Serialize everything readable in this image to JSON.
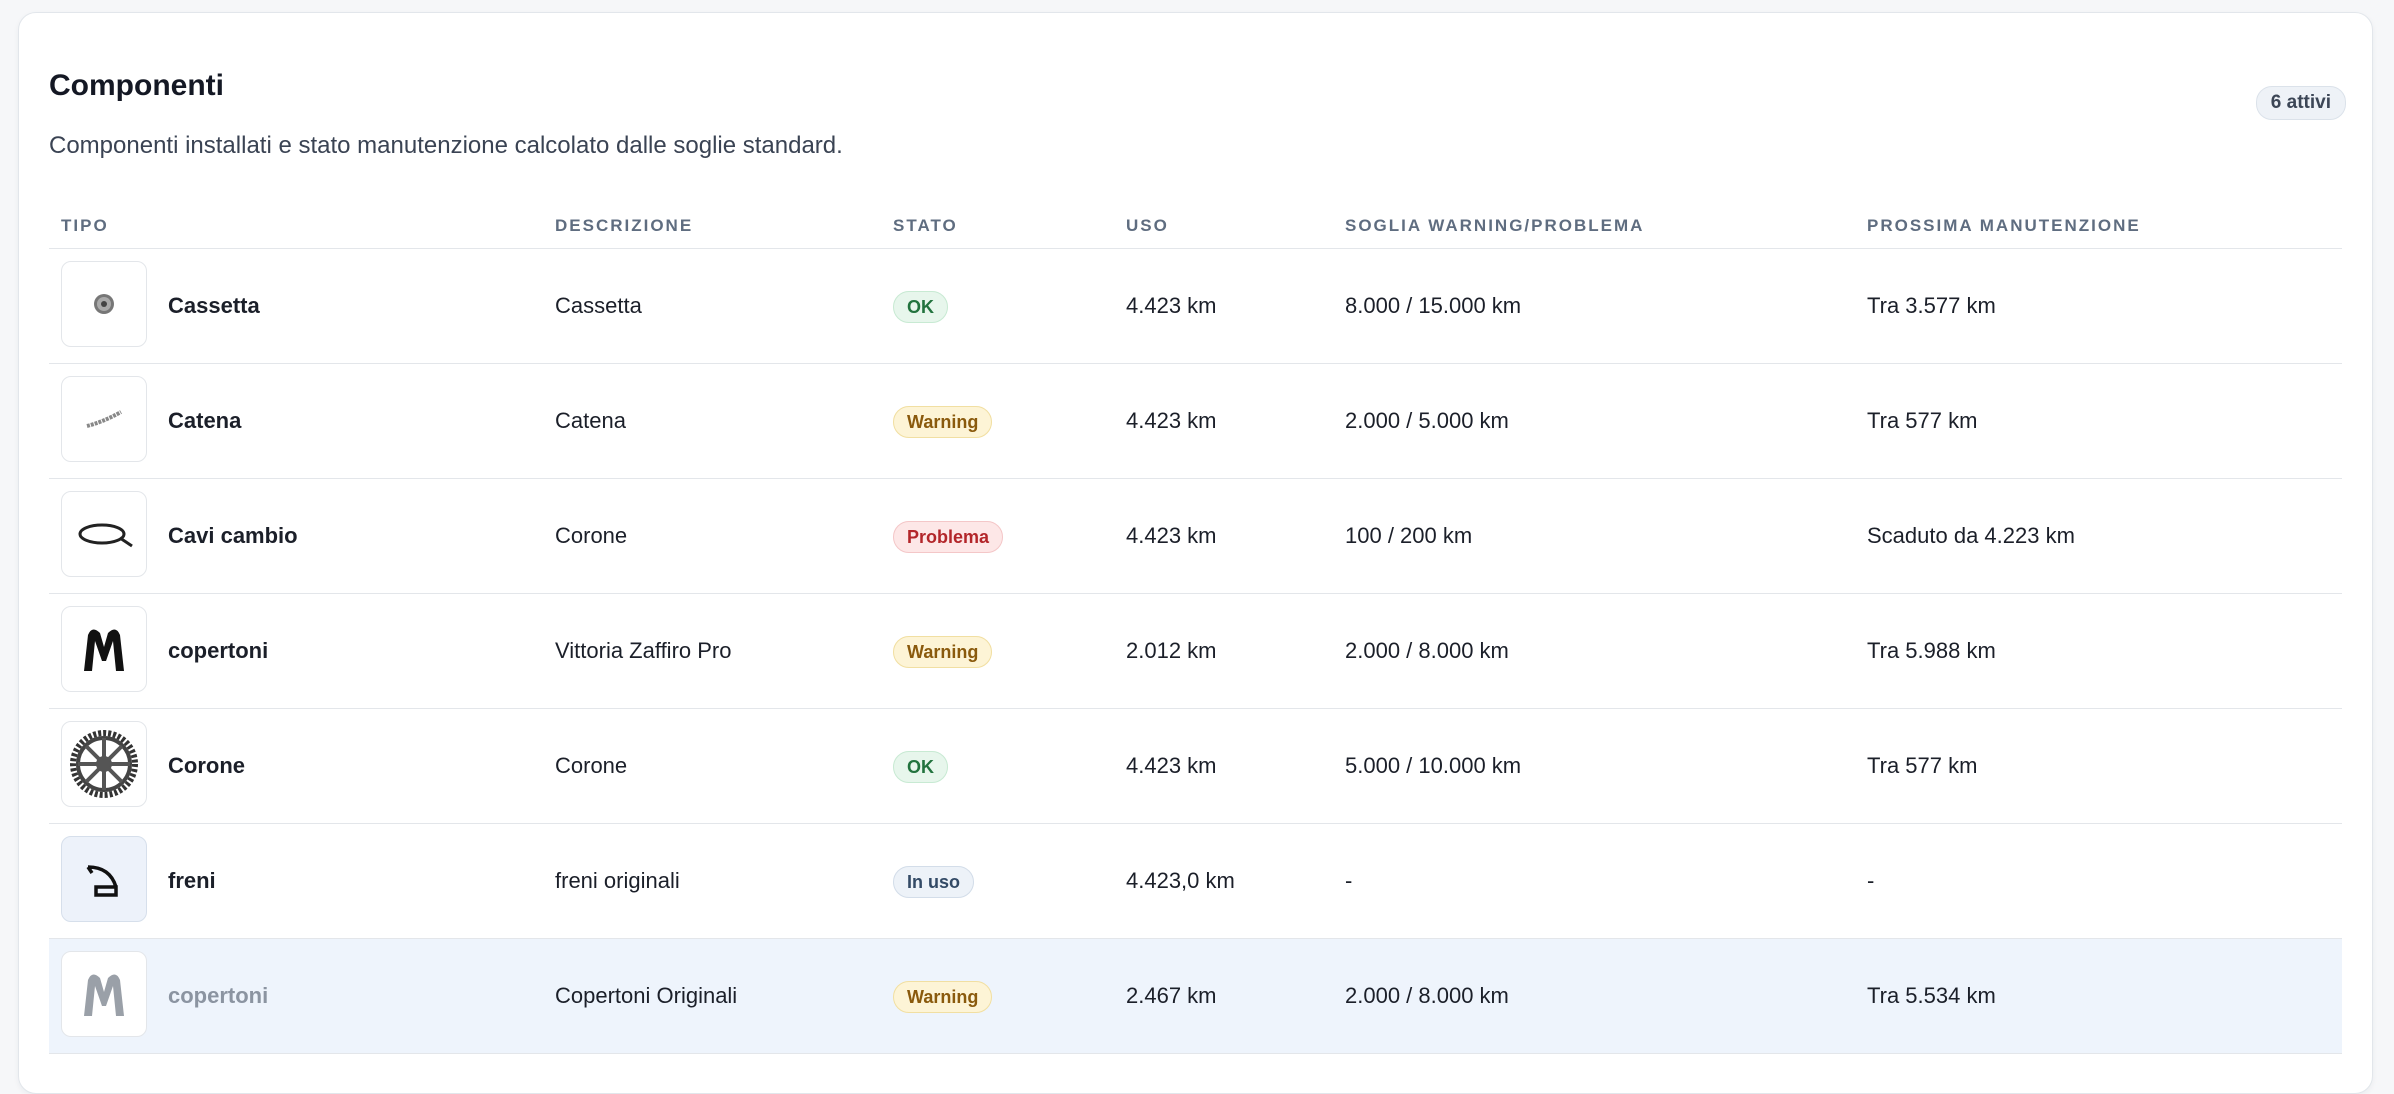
{
  "header": {
    "title": "Componenti",
    "subtitle": "Componenti installati e stato manutenzione calcolato dalle soglie standard.",
    "badge": "6 attivi"
  },
  "table": {
    "columns": [
      "TIPO",
      "DESCRIZIONE",
      "STATO",
      "USO",
      "SOGLIA WARNING/PROBLEMA",
      "PROSSIMA MANUTENZIONE"
    ],
    "rows": [
      [
        "Cassetta",
        "Cassetta",
        "OK",
        "4.423 km",
        "8.000 / 15.000 km",
        "Tra 3.577 km"
      ],
      [
        "Catena",
        "Catena",
        "Warning",
        "4.423 km",
        "2.000 / 5.000 km",
        "Tra 577 km"
      ],
      [
        "Cavi cambio",
        "Corone",
        "Problema",
        "4.423 km",
        "100 / 200 km",
        "Scaduto da 4.223 km"
      ],
      [
        "copertoni",
        "Vittoria Zaffiro Pro",
        "Warning",
        "2.012 km",
        "2.000 / 8.000 km",
        "Tra 5.988 km"
      ],
      [
        "Corone",
        "Corone",
        "OK",
        "4.423 km",
        "5.000 / 10.000 km",
        "Tra 577 km"
      ],
      [
        "freni",
        "freni originali",
        "In uso",
        "4.423,0 km",
        "-",
        "-"
      ],
      [
        "copertoni",
        "Copertoni Originali",
        "Warning",
        "2.467 km",
        "2.000 / 8.000 km",
        "Tra 5.534 km"
      ]
    ]
  }
}
